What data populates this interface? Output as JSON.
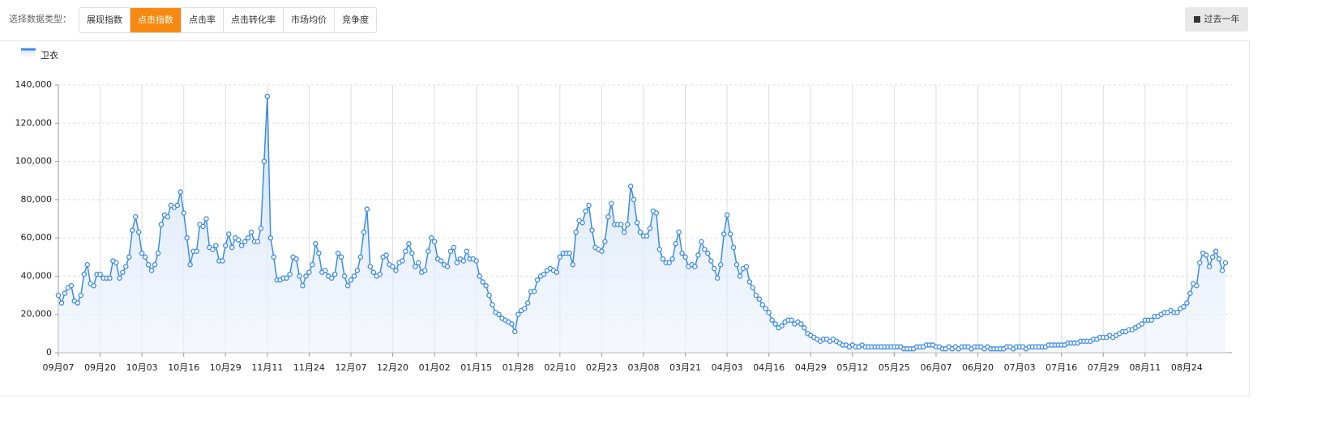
{
  "toolbar": {
    "label": "选择数据类型：",
    "options": [
      "展现指数",
      "点击指数",
      "点击率",
      "点击转化率",
      "市场均价",
      "竞争度"
    ],
    "active": 1,
    "range_button": "过去一年"
  },
  "chart_data": {
    "type": "line",
    "color": "#3c8be6",
    "grid": true,
    "series": [
      {
        "name": "卫衣",
        "color": "#3c8be6",
        "values": [
          30000,
          26000,
          31000,
          34000,
          35000,
          27000,
          26000,
          30000,
          41000,
          46000,
          36000,
          35000,
          41000,
          41000,
          39000,
          39000,
          39000,
          48000,
          47000,
          39000,
          42000,
          45000,
          50000,
          64000,
          71000,
          63000,
          52000,
          50000,
          46000,
          43000,
          46000,
          52000,
          67000,
          72000,
          71000,
          77000,
          76000,
          77000,
          84000,
          73000,
          60000,
          46000,
          53000,
          53000,
          67000,
          66000,
          70000,
          55000,
          54000,
          56000,
          48000,
          48000,
          56000,
          62000,
          55000,
          60000,
          59000,
          56000,
          58000,
          60000,
          63000,
          58000,
          58000,
          65000,
          100000,
          134000,
          60000,
          50000,
          38000,
          38000,
          39000,
          39000,
          41000,
          50000,
          49000,
          40000,
          35000,
          40000,
          42000,
          46000,
          57000,
          52000,
          42000,
          43000,
          40000,
          39000,
          41000,
          52000,
          50000,
          40000,
          35000,
          38000,
          40000,
          43000,
          50000,
          63000,
          75000,
          45000,
          42000,
          40000,
          41000,
          50000,
          51000,
          46000,
          45000,
          43000,
          47000,
          48000,
          53000,
          57000,
          52000,
          45000,
          47000,
          42000,
          43000,
          53000,
          60000,
          58000,
          49000,
          48000,
          46000,
          45000,
          53000,
          55000,
          47000,
          49000,
          48000,
          53000,
          49000,
          49000,
          48000,
          40000,
          37000,
          35000,
          30000,
          25000,
          21000,
          20000,
          18000,
          17000,
          16000,
          15000,
          11000,
          20000,
          22000,
          23000,
          26000,
          32000,
          32000,
          38000,
          40000,
          41000,
          43000,
          44000,
          43000,
          42000,
          50000,
          52000,
          52000,
          52000,
          46000,
          63000,
          69000,
          68000,
          74000,
          77000,
          64000,
          55000,
          54000,
          53000,
          58000,
          71000,
          78000,
          67000,
          67000,
          67000,
          63000,
          67000,
          87000,
          80000,
          68000,
          63000,
          61000,
          61000,
          65000,
          74000,
          73000,
          54000,
          49000,
          47000,
          47000,
          49000,
          57000,
          63000,
          52000,
          50000,
          45000,
          46000,
          45000,
          51000,
          58000,
          54000,
          52000,
          48000,
          44000,
          39000,
          46000,
          62000,
          72000,
          62000,
          55000,
          46000,
          40000,
          44000,
          45000,
          37000,
          34000,
          30000,
          28000,
          25000,
          23000,
          21000,
          17000,
          15000,
          13000,
          14000,
          16000,
          17000,
          17000,
          15000,
          16000,
          15000,
          13000,
          10000,
          9000,
          8000,
          7000,
          6000,
          7000,
          7000,
          6000,
          7000,
          6000,
          5000,
          4000,
          4000,
          3000,
          4000,
          3000,
          3000,
          4000,
          3000,
          3000,
          3000,
          3000,
          3000,
          3000,
          3000,
          3000,
          3000,
          3000,
          3000,
          3000,
          2000,
          2000,
          2000,
          2000,
          3000,
          3000,
          3000,
          4000,
          4000,
          4000,
          3000,
          3000,
          2000,
          2000,
          3000,
          2000,
          3000,
          2000,
          3000,
          3000,
          3000,
          2000,
          3000,
          3000,
          3000,
          2000,
          3000,
          2000,
          2000,
          2000,
          2000,
          2000,
          3000,
          3000,
          2000,
          3000,
          3000,
          3000,
          2000,
          3000,
          3000,
          3000,
          3000,
          3000,
          3000,
          4000,
          4000,
          4000,
          4000,
          4000,
          4000,
          5000,
          5000,
          5000,
          5000,
          6000,
          6000,
          6000,
          6000,
          7000,
          7000,
          8000,
          8000,
          8000,
          9000,
          8000,
          9000,
          10000,
          11000,
          11000,
          12000,
          12000,
          13000,
          14000,
          15000,
          17000,
          17000,
          17000,
          19000,
          19000,
          20000,
          21000,
          21000,
          22000,
          21000,
          21000,
          23000,
          24000,
          26000,
          31000,
          36000,
          35000,
          47000,
          52000,
          51000,
          45000,
          50000,
          53000,
          49000,
          43000,
          47000
        ]
      }
    ],
    "categories": [
      "09月07",
      null,
      null,
      null,
      null,
      null,
      null,
      null,
      null,
      null,
      null,
      null,
      null,
      "09月20",
      null,
      null,
      null,
      null,
      null,
      null,
      null,
      null,
      null,
      null,
      null,
      null,
      "10月03",
      null,
      null,
      null,
      null,
      null,
      null,
      null,
      null,
      null,
      null,
      null,
      null,
      "10月16",
      null,
      null,
      null,
      null,
      null,
      null,
      null,
      null,
      null,
      null,
      null,
      null,
      "10月29",
      null,
      null,
      null,
      null,
      null,
      null,
      null,
      null,
      null,
      null,
      null,
      null,
      "11月11",
      null,
      null,
      null,
      null,
      null,
      null,
      null,
      null,
      null,
      null,
      null,
      null,
      "11月24",
      null,
      null,
      null,
      null,
      null,
      null,
      null,
      null,
      null,
      null,
      null,
      null,
      "12月07",
      null,
      null,
      null,
      null,
      null,
      null,
      null,
      null,
      null,
      null,
      null,
      null,
      "12月20",
      null,
      null,
      null,
      null,
      null,
      null,
      null,
      null,
      null,
      null,
      null,
      null,
      "01月02",
      null,
      null,
      null,
      null,
      null,
      null,
      null,
      null,
      null,
      null,
      null,
      null,
      "01月15",
      null,
      null,
      null,
      null,
      null,
      null,
      null,
      null,
      null,
      null,
      null,
      null,
      "01月28",
      null,
      null,
      null,
      null,
      null,
      null,
      null,
      null,
      null,
      null,
      null,
      null,
      "02月10",
      null,
      null,
      null,
      null,
      null,
      null,
      null,
      null,
      null,
      null,
      null,
      null,
      "02月23",
      null,
      null,
      null,
      null,
      null,
      null,
      null,
      null,
      null,
      null,
      null,
      null,
      "03月08",
      null,
      null,
      null,
      null,
      null,
      null,
      null,
      null,
      null,
      null,
      null,
      null,
      "03月21",
      null,
      null,
      null,
      null,
      null,
      null,
      null,
      null,
      null,
      null,
      null,
      null,
      "04月03",
      null,
      null,
      null,
      null,
      null,
      null,
      null,
      null,
      null,
      null,
      null,
      null,
      "04月16",
      null,
      null,
      null,
      null,
      null,
      null,
      null,
      null,
      null,
      null,
      null,
      null,
      "04月29",
      null,
      null,
      null,
      null,
      null,
      null,
      null,
      null,
      null,
      null,
      null,
      null,
      "05月12",
      null,
      null,
      null,
      null,
      null,
      null,
      null,
      null,
      null,
      null,
      null,
      null,
      "05月25",
      null,
      null,
      null,
      null,
      null,
      null,
      null,
      null,
      null,
      null,
      null,
      null,
      "06月07",
      null,
      null,
      null,
      null,
      null,
      null,
      null,
      null,
      null,
      null,
      null,
      null,
      "06月20",
      null,
      null,
      null,
      null,
      null,
      null,
      null,
      null,
      null,
      null,
      null,
      null,
      "07月03",
      null,
      null,
      null,
      null,
      null,
      null,
      null,
      null,
      null,
      null,
      null,
      null,
      "07月16",
      null,
      null,
      null,
      null,
      null,
      null,
      null,
      null,
      null,
      null,
      null,
      null,
      "07月29",
      null,
      null,
      null,
      null,
      null,
      null,
      null,
      null,
      null,
      null,
      null,
      null,
      "08月11",
      null,
      null,
      null,
      null,
      null,
      null,
      null,
      null,
      null,
      null,
      null,
      null,
      "08月24",
      null,
      null,
      null,
      null,
      null,
      null,
      null,
      null,
      null,
      null,
      null,
      null
    ],
    "ylim": [
      0,
      140000
    ],
    "yticks": [
      0,
      {
        "value": 20000,
        "label": "20,000"
      },
      {
        "value": 40000,
        "label": "40,000"
      },
      {
        "value": 60000,
        "label": "60,000"
      },
      {
        "value": 80000,
        "label": "80,000"
      },
      {
        "value": 100000,
        "label": "100,000"
      },
      {
        "value": 120000,
        "label": "120,000"
      },
      {
        "value": 140000,
        "label": "140,000"
      }
    ]
  }
}
